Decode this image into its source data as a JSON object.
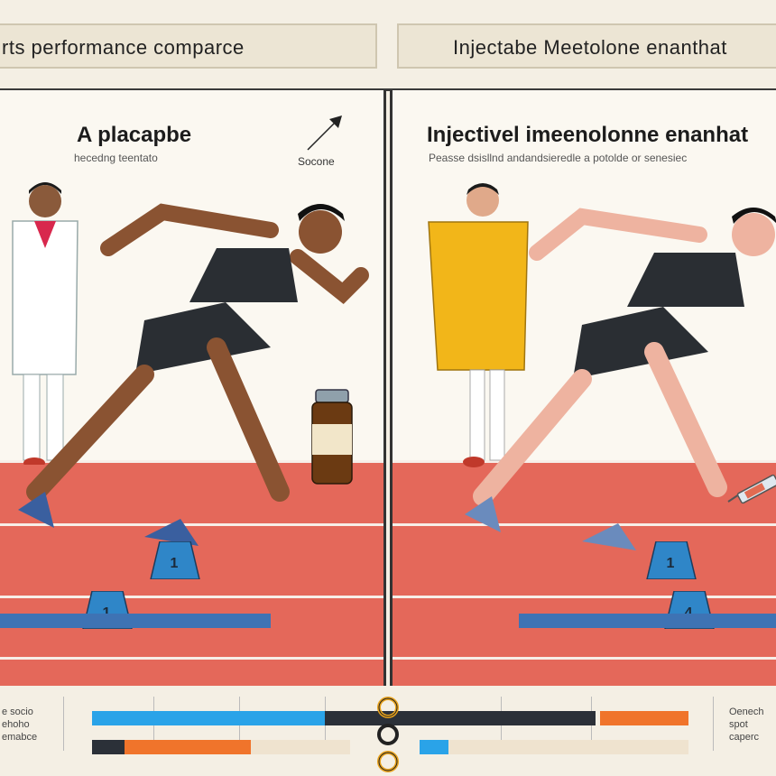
{
  "header": {
    "left_title": "rts performance comparce",
    "right_title": "Injectabe Meetolone enanthat"
  },
  "left_panel": {
    "title": "A placapbe",
    "subtitle": "hecedng teentato",
    "arrow_label": "Socone",
    "block_numbers": [
      "1",
      "1"
    ]
  },
  "right_panel": {
    "title": "Injectivel imeenolonne enanhat",
    "subtitle": "Peasse dsisllnd andandsieredle a potolde or senesiec",
    "block_numbers": [
      "1",
      "4"
    ]
  },
  "footer": {
    "left_text": [
      "e socio",
      "ehoho",
      "emabce"
    ],
    "right_text": [
      "Oenech",
      "spot",
      "caperc"
    ]
  },
  "colors": {
    "track": "#e4685a",
    "bar_blue": "#2aa3e8",
    "bar_orange": "#f0742b",
    "bar_dark": "#2b3038"
  }
}
